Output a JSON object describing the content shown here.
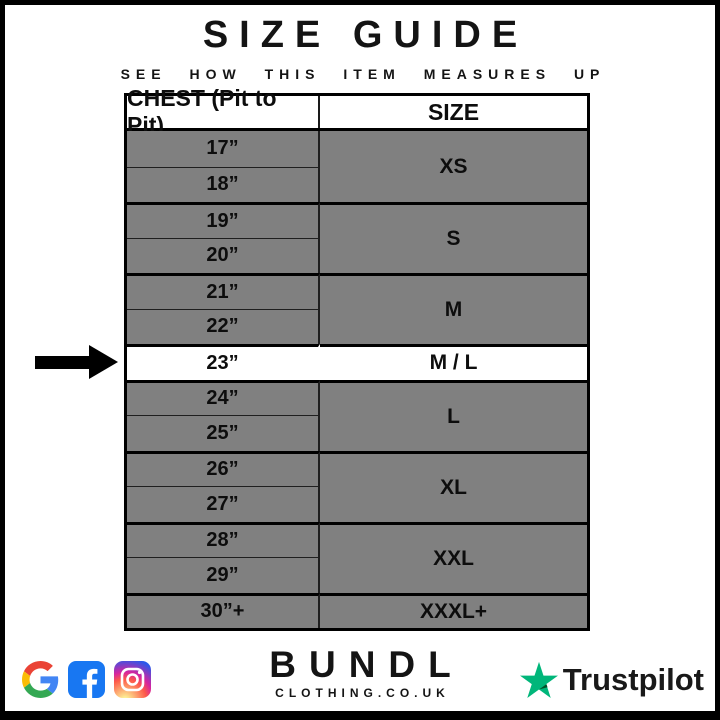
{
  "page": {
    "title": "SIZE GUIDE",
    "subtitle": "SEE HOW THIS ITEM MEASURES UP"
  },
  "table": {
    "headers": [
      "CHEST (Pit to Pit)",
      "SIZE"
    ],
    "groups": [
      {
        "chest": [
          "17”",
          "18”"
        ],
        "size": "XS",
        "highlight": false
      },
      {
        "chest": [
          "19”",
          "20”"
        ],
        "size": "S",
        "highlight": false
      },
      {
        "chest": [
          "21”",
          "22”"
        ],
        "size": "M",
        "highlight": false
      },
      {
        "chest": [
          "23”"
        ],
        "size": "M / L",
        "highlight": true
      },
      {
        "chest": [
          "24”",
          "25”"
        ],
        "size": "L",
        "highlight": false
      },
      {
        "chest": [
          "26”",
          "27”"
        ],
        "size": "XL",
        "highlight": false
      },
      {
        "chest": [
          "28”",
          "29”"
        ],
        "size": "XXL",
        "highlight": false
      },
      {
        "chest": [
          "30”+"
        ],
        "size": "XXXL+",
        "highlight": false
      }
    ],
    "highlighted_row": {
      "chest": "23”",
      "size": "M / L"
    }
  },
  "chart_data": {
    "type": "table",
    "title": "SIZE GUIDE",
    "subtitle": "SEE HOW THIS ITEM MEASURES UP",
    "columns": [
      "CHEST (Pit to Pit)",
      "SIZE"
    ],
    "rows": [
      [
        "17”",
        "XS"
      ],
      [
        "18”",
        "XS"
      ],
      [
        "19”",
        "S"
      ],
      [
        "20”",
        "S"
      ],
      [
        "21”",
        "M"
      ],
      [
        "22”",
        "M"
      ],
      [
        "23”",
        "M / L"
      ],
      [
        "24”",
        "L"
      ],
      [
        "25”",
        "L"
      ],
      [
        "26”",
        "XL"
      ],
      [
        "27”",
        "XL"
      ],
      [
        "28”",
        "XXL"
      ],
      [
        "29”",
        "XXL"
      ],
      [
        "30”+",
        "XXXL+"
      ]
    ],
    "highlighted_row": [
      "23”",
      "M / L"
    ]
  },
  "footer": {
    "brand": "BUNDL",
    "brand_domain": "CLOTHING.CO.UK",
    "trustpilot_label": "Trustpilot",
    "social_icons": [
      "google",
      "facebook",
      "instagram"
    ]
  },
  "colors": {
    "row-gray": "#808080",
    "grid-line": "#1f1f1f",
    "highlight": "#ffffff",
    "trustpilot-green": "#00B67A",
    "trustpilot-dark": "#005128",
    "facebook-blue": "#1877F2",
    "google-blue": "#4285F4",
    "google-red": "#EA4335",
    "google-yellow": "#FBBC05",
    "google-green": "#34A853"
  }
}
